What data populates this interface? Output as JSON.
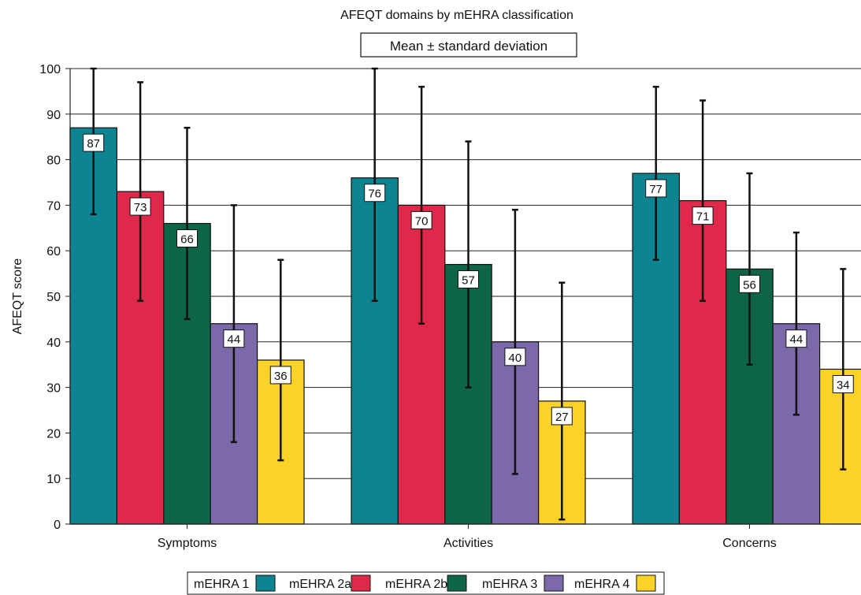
{
  "chart_data": {
    "type": "bar",
    "title": "AFEQT domains by mEHRA classification",
    "subtitle": "Mean ± standard deviation",
    "ylabel": "AFEQT score",
    "xlabel": "",
    "ylim": [
      0,
      100
    ],
    "yticks": [
      0,
      10,
      20,
      30,
      40,
      50,
      60,
      70,
      80,
      90,
      100
    ],
    "categories": [
      "Symptoms",
      "Activities",
      "Concerns"
    ],
    "grid": "horizontal",
    "legend_position": "bottom",
    "series": [
      {
        "name": "mEHRA 1",
        "color": "#0c8491",
        "values": [
          87,
          76,
          77
        ],
        "err_low": [
          68,
          49,
          58
        ],
        "err_high": [
          100,
          100,
          96
        ],
        "labels": [
          "87",
          "76",
          "77"
        ]
      },
      {
        "name": "mEHRA 2a",
        "color": "#e0294a",
        "values": [
          73,
          70,
          71
        ],
        "err_low": [
          49,
          44,
          49
        ],
        "err_high": [
          97,
          96,
          93
        ],
        "labels": [
          "73",
          "70",
          "71"
        ]
      },
      {
        "name": "mEHRA 2b",
        "color": "#0d6446",
        "values": [
          66,
          57,
          56
        ],
        "err_low": [
          45,
          30,
          35
        ],
        "err_high": [
          87,
          84,
          77
        ],
        "labels": [
          "66",
          "57",
          "56"
        ]
      },
      {
        "name": "mEHRA 3",
        "color": "#7b69a9",
        "values": [
          44,
          40,
          44
        ],
        "err_low": [
          18,
          11,
          24
        ],
        "err_high": [
          70,
          69,
          64
        ],
        "labels": [
          "44",
          "40",
          "44"
        ]
      },
      {
        "name": "mEHRA 4",
        "color": "#fcd227",
        "values": [
          36,
          27,
          34
        ],
        "err_low": [
          14,
          1,
          12
        ],
        "err_high": [
          58,
          53,
          56
        ],
        "labels": [
          "36",
          "27",
          "34"
        ]
      }
    ]
  }
}
